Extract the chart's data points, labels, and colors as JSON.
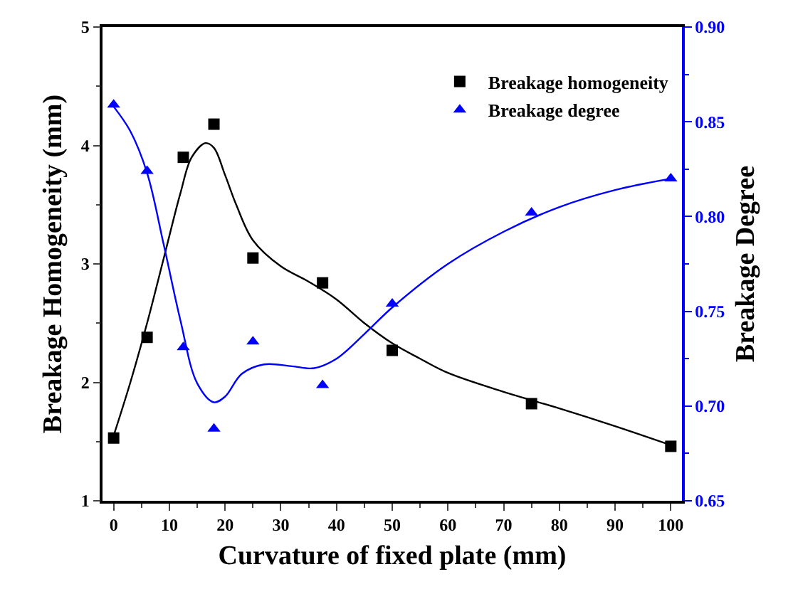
{
  "chart_data": {
    "type": "scatter",
    "xlabel": "Curvature of fixed plate (mm)",
    "ylabel": "Breakage Homogeneity (mm)",
    "y2label": "Breakage Degree",
    "x": [
      0,
      6,
      12.5,
      18,
      25,
      37.5,
      50,
      75,
      100
    ],
    "xlim": [
      -2,
      102
    ],
    "xticks": [
      0,
      10,
      20,
      30,
      40,
      50,
      60,
      70,
      80,
      90,
      100
    ],
    "ylim": [
      1,
      5
    ],
    "yticks": [
      1,
      2,
      3,
      4,
      5
    ],
    "y2lim": [
      0.65,
      0.9
    ],
    "y2ticks": [
      {
        "value": 0.65,
        "label": "0.65"
      },
      {
        "value": 0.7,
        "label": "0.70"
      },
      {
        "value": 0.75,
        "label": "0.75"
      },
      {
        "value": 0.8,
        "label": "0.80"
      },
      {
        "value": 0.85,
        "label": "0.85"
      },
      {
        "value": 0.9,
        "label": "0.90"
      }
    ],
    "legend": "top right",
    "series": [
      {
        "name": "Breakage homogeneity",
        "color": "#000000",
        "marker": "square",
        "values": [
          1.53,
          2.38,
          3.9,
          4.18,
          3.05,
          2.84,
          2.27,
          1.82,
          1.46
        ]
      },
      {
        "name": "Breakage degree",
        "color": "#0000ff",
        "marker": "triangle",
        "axis": "y2",
        "values": [
          0.859,
          0.824,
          0.731,
          0.688,
          0.734,
          0.711,
          0.754,
          0.802,
          0.82
        ]
      },
      {
        "type": "line",
        "color": "#000000",
        "x": [
          0,
          3,
          6,
          9,
          12,
          14,
          16.5,
          18,
          20,
          22,
          25,
          30,
          35,
          40,
          45,
          50,
          55,
          60,
          70,
          80,
          90,
          100
        ],
        "values": [
          1.55,
          2.0,
          2.5,
          3.05,
          3.6,
          3.9,
          4.02,
          3.98,
          3.75,
          3.5,
          3.2,
          2.98,
          2.85,
          2.7,
          2.5,
          2.33,
          2.2,
          2.08,
          1.92,
          1.78,
          1.63,
          1.47
        ]
      },
      {
        "type": "line",
        "color": "#0000ff",
        "axis": "y2",
        "x": [
          0,
          3,
          6,
          9,
          12,
          15,
          18,
          20,
          23,
          27,
          32,
          36,
          40,
          45,
          50,
          60,
          70,
          80,
          90,
          100
        ],
        "values": [
          0.858,
          0.845,
          0.823,
          0.785,
          0.745,
          0.712,
          0.702,
          0.705,
          0.717,
          0.722,
          0.721,
          0.72,
          0.725,
          0.738,
          0.752,
          0.775,
          0.792,
          0.805,
          0.814,
          0.82
        ]
      }
    ]
  }
}
